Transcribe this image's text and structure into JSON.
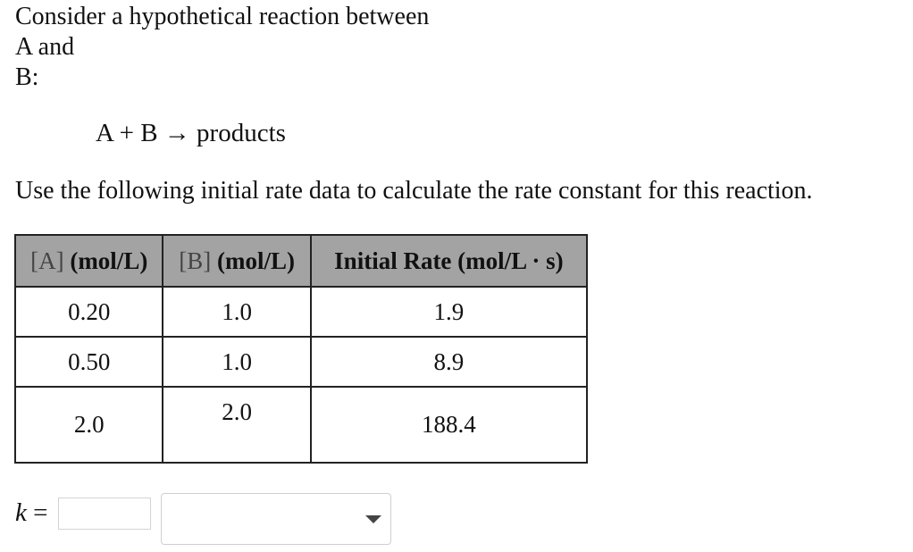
{
  "intro": {
    "line1": "Consider a hypothetical reaction between",
    "line2": "A and",
    "line3": "B:"
  },
  "equation": {
    "text": "A + B → products"
  },
  "instruction": "Use the following initial rate data to calculate the rate constant for this reaction.",
  "table": {
    "headers": [
      {
        "bracket": "[A]",
        "text": " (mol/L)"
      },
      {
        "bracket": "[B]",
        "text": " (mol/L)"
      },
      {
        "bracket": "",
        "text": "Initial Rate (mol/L · s)"
      }
    ],
    "rows": [
      [
        "0.20",
        "1.0",
        "1.9"
      ],
      [
        "0.50",
        "1.0",
        "8.9"
      ],
      [
        "2.0",
        "2.0",
        "188.4"
      ]
    ]
  },
  "answer": {
    "label_var": "k",
    "label_eq": " =",
    "input_value": "",
    "input_placeholder": "",
    "unit_selected": ""
  }
}
